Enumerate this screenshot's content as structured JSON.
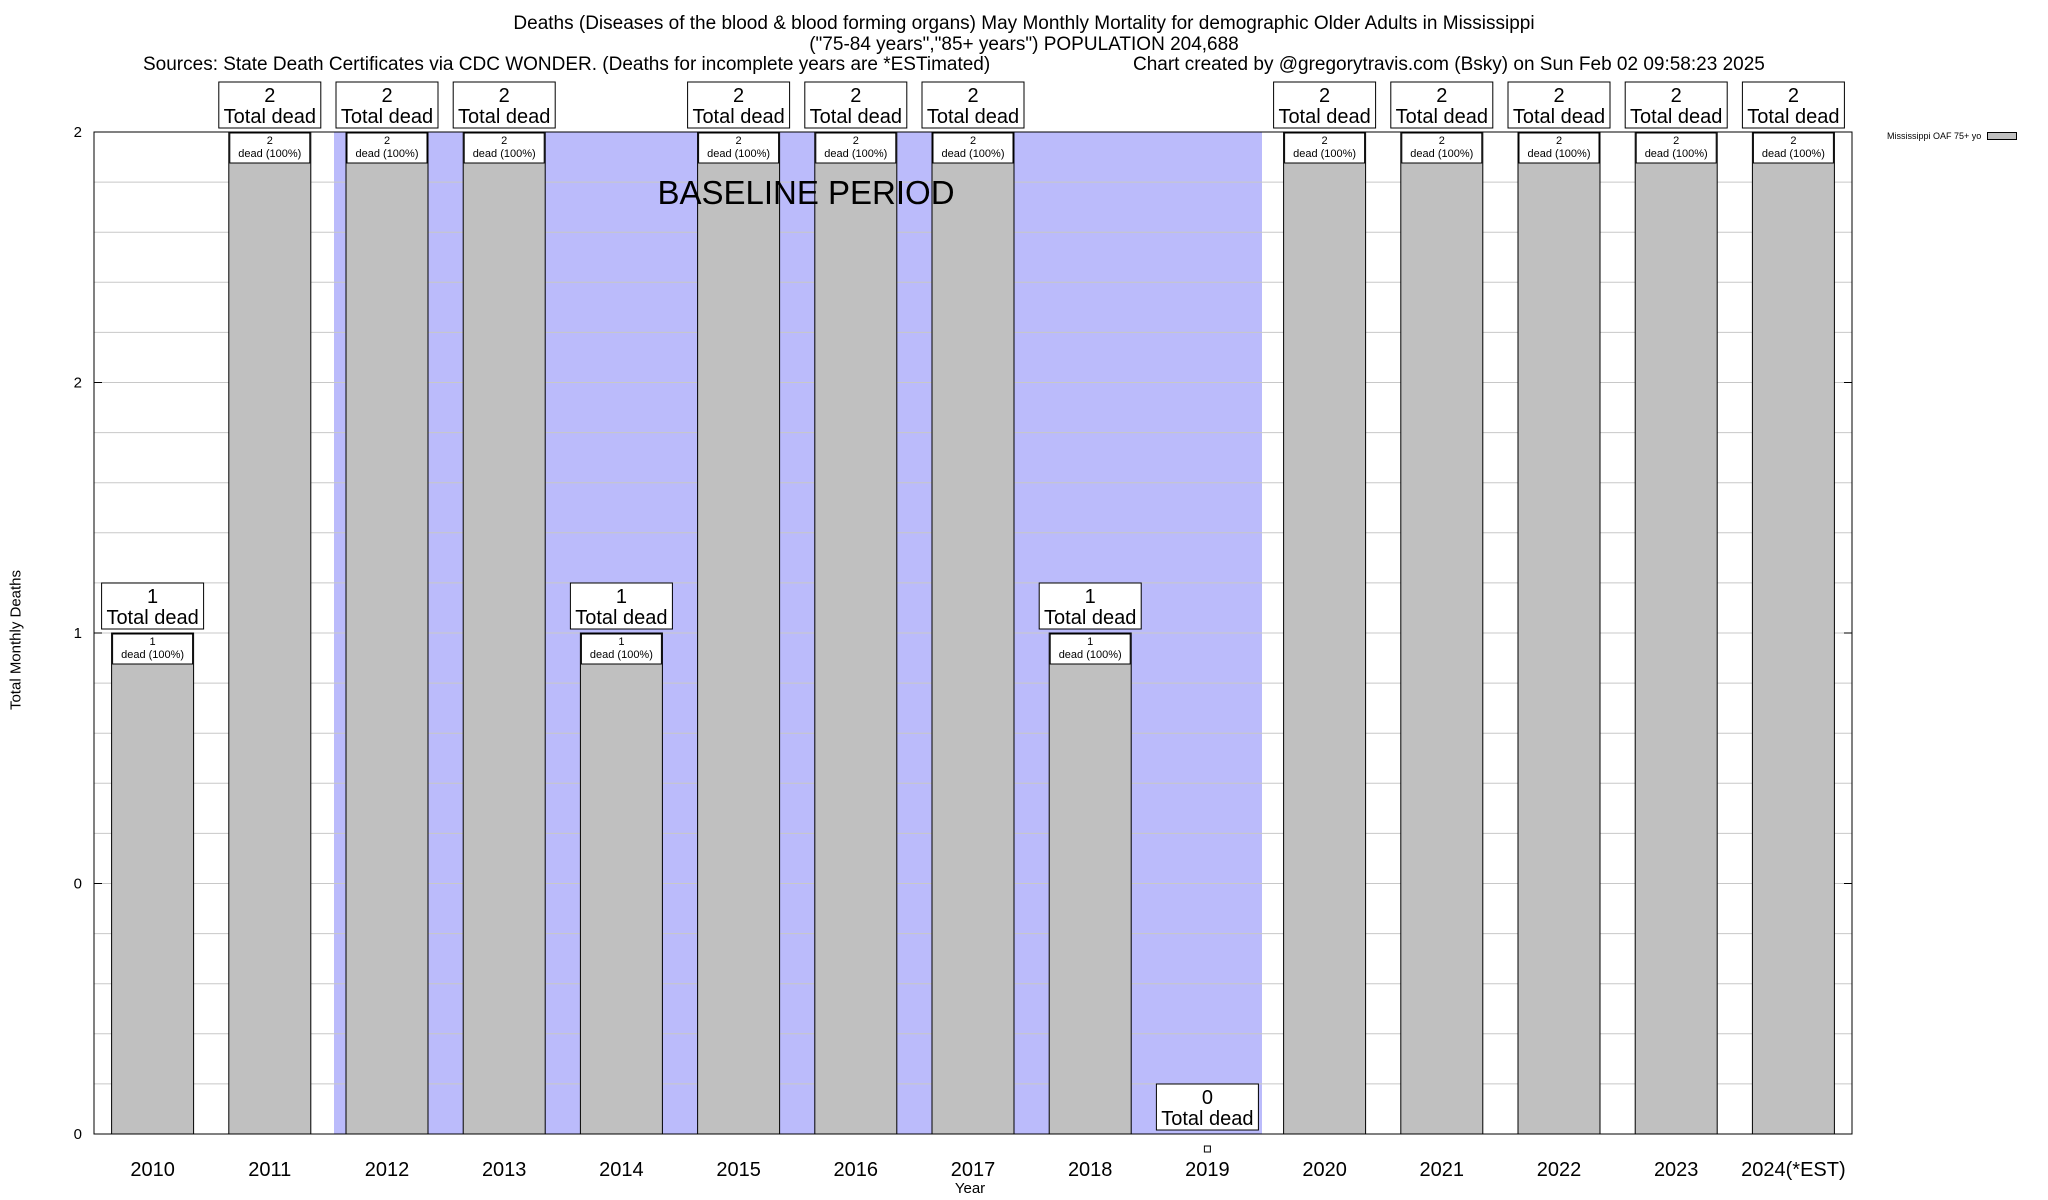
{
  "chart_data": {
    "type": "bar",
    "title": "Deaths (Diseases of the blood & blood forming organs) May Monthly Mortality for demographic Older Adults in Mississippi",
    "subtitle": "(\"75-84 years\",\"85+ years\") POPULATION 204,688",
    "sources": "Sources: State Death Certificates via CDC WONDER. (Deaths for incomplete years are *ESTimated)",
    "credit": "Chart created by @gregorytravis.com (Bsky) on Sun Feb 02 09:58:23 2025",
    "xlabel": "Year",
    "ylabel": "Total Monthly Deaths",
    "categories": [
      "2010",
      "2011",
      "2012",
      "2013",
      "2014",
      "2015",
      "2016",
      "2017",
      "2018",
      "2019",
      "2020",
      "2021",
      "2022",
      "2023",
      "2024(*EST)"
    ],
    "series": [
      {
        "name": "Mississippi OAF 75+ yo",
        "values": [
          1,
          2,
          2,
          2,
          1,
          2,
          2,
          2,
          1,
          0,
          2,
          2,
          2,
          2,
          2
        ]
      }
    ],
    "y_tick_labels": [
      "0",
      "0",
      "1",
      "2",
      "2"
    ],
    "ylim": [
      0,
      2
    ],
    "grid": true,
    "legend_position": "top-right",
    "baseline_label": "BASELINE PERIOD",
    "baseline_range": [
      "2012",
      "2019"
    ],
    "total_label_suffix": "Total dead",
    "inner_label_suffix": "dead (100%)",
    "colors": {
      "bar": "#c0c0c0",
      "baseline": "#bbbbfb",
      "grid": "#c8c8c8"
    }
  }
}
